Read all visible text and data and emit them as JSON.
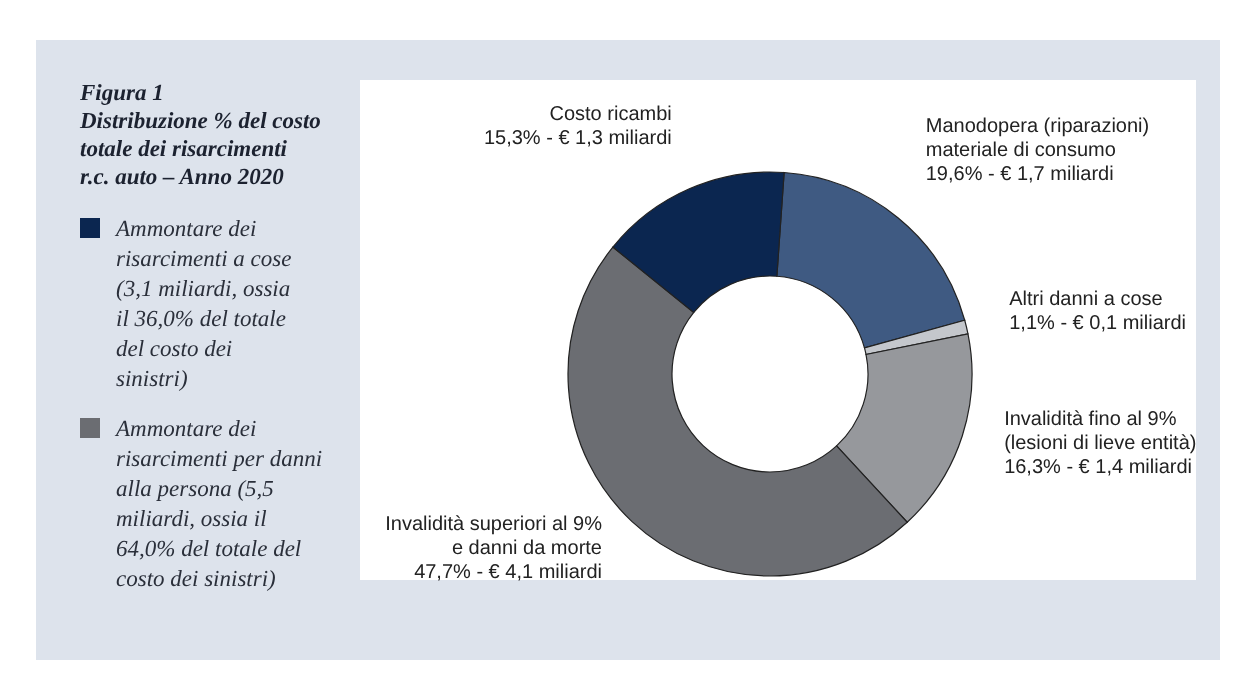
{
  "chart_data": {
    "type": "donut",
    "title": "Figura 1",
    "subtitle": "Distribuzione % del costo totale dei risarcimenti r.c. auto – Anno 2020",
    "categories": [
      "Manodopera (riparazioni) materiale di consumo",
      "Altri danni a cose",
      "Invalidità fino al 9% (lesioni di lieve entità)",
      "Invalidità superiori al 9% e danni da morte",
      "Costo ricambi"
    ],
    "values": [
      19.6,
      1.1,
      16.3,
      47.7,
      15.3
    ],
    "value_labels": [
      "19,6% - € 1,7 miliardi",
      "1,1% - € 0,1 miliardi",
      "16,3% - € 1,4 miliardi",
      "47,7% - € 4,1 miliardi",
      "15,3% - € 1,3 miliardi"
    ],
    "colors": [
      "#3f5a82",
      "#c4c7cc",
      "#96989c",
      "#6b6d72",
      "#0b2650"
    ],
    "annotations": [
      "Ammontare dei risarcimenti a cose (3,1 miliardi, ossia il 36,0% del totale del costo dei sinistri)",
      "Ammontare dei risarcimenti per danni alla persona (5,5 miliardi, ossia il 64,0% del totale del costo dei sinistri)"
    ]
  }
}
